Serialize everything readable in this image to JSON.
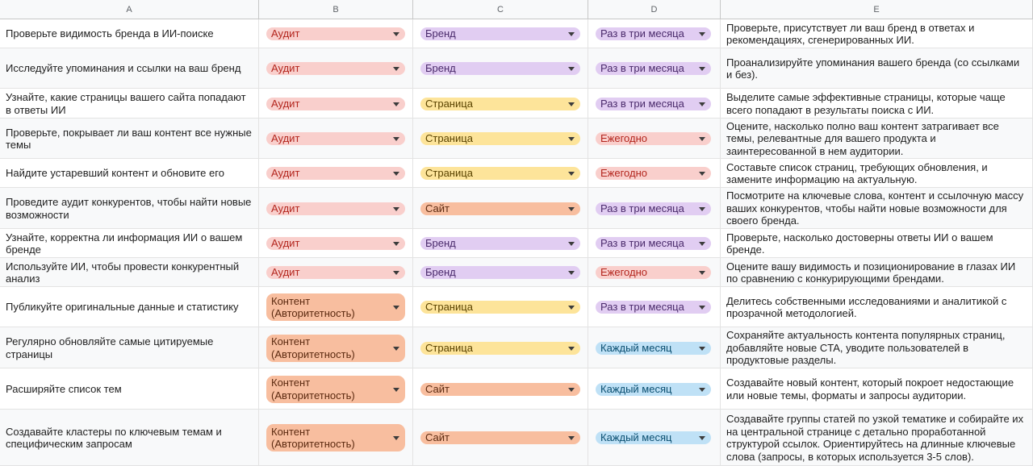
{
  "columns": [
    "A",
    "B",
    "C",
    "D",
    "E"
  ],
  "rows": [
    {
      "task": "Проверьте видимость бренда в ИИ-поиске",
      "category": "Аудит",
      "scope": "Бренд",
      "freq": "Раз в три месяца",
      "desc": "Проверьте, присутствует ли ваш бренд в ответах и рекомендациях, сгенерированных ИИ."
    },
    {
      "task": "Исследуйте упоминания и ссылки на ваш бренд",
      "category": "Аудит",
      "scope": "Бренд",
      "freq": "Раз в три месяца",
      "desc": "Проанализируйте упоминания вашего бренда (со ссылками и без)."
    },
    {
      "task": "Узнайте, какие страницы вашего сайта попадают в ответы ИИ",
      "category": "Аудит",
      "scope": "Страница",
      "freq": "Раз в три месяца",
      "desc": "Выделите самые эффективные страницы, которые чаще всего попадают в результаты поиска с ИИ."
    },
    {
      "task": "Проверьте, покрывает ли ваш контент все нужные темы",
      "category": "Аудит",
      "scope": "Страница",
      "freq": "Ежегодно",
      "desc": "Оцените, насколько полно ваш контент затрагивает все темы, релевантные для вашего продукта и заинтересованной в нем аудитории."
    },
    {
      "task": "Найдите устаревший контент и обновите его",
      "category": "Аудит",
      "scope": "Страница",
      "freq": "Ежегодно",
      "desc": "Составьте список страниц, требующих обновления, и замените информацию на актуальную."
    },
    {
      "task": "Проведите аудит конкурентов, чтобы найти новые возможности",
      "category": "Аудит",
      "scope": "Сайт",
      "freq": "Раз в три месяца",
      "desc": "Посмотрите на ключевые слова, контент и ссылочную массу ваших конкурентов, чтобы найти новые возможности для своего бренда."
    },
    {
      "task": "Узнайте, корректна ли информация ИИ о вашем бренде",
      "category": "Аудит",
      "scope": "Бренд",
      "freq": "Раз в три месяца",
      "desc": "Проверьте, насколько достоверны ответы ИИ о вашем бренде."
    },
    {
      "task": "Используйте ИИ, чтобы провести конкурентный анализ",
      "category": "Аудит",
      "scope": "Бренд",
      "freq": "Ежегодно",
      "desc": "Оцените вашу видимость и позиционирование в глазах ИИ по сравнению с конкурирующими брендами."
    },
    {
      "task": "Публикуйте оригинальные данные и статистику",
      "category": "Контент\n(Авторитетность)",
      "scope": "Страница",
      "freq": "Раз в три месяца",
      "desc": "Делитесь собственными исследованиями и аналитикой с прозрачной методологией."
    },
    {
      "task": "Регулярно обновляйте самые цитируемые страницы",
      "category": "Контент\n(Авторитетность)",
      "scope": "Страница",
      "freq": "Каждый месяц",
      "desc": "Сохраняйте актуальность контента популярных страниц, добавляйте новые CTA, уводите пользователей в продуктовые разделы."
    },
    {
      "task": "Расширяйте список тем",
      "category": "Контент\n(Авторитетность)",
      "scope": "Сайт",
      "freq": "Каждый месяц",
      "desc": "Создавайте новый контент, который покроет недостающие или новые темы, форматы и запросы аудитории."
    },
    {
      "task": "Создавайте кластеры по ключевым темам и специфическим запросам",
      "category": "Контент\n(Авторитетность)",
      "scope": "Сайт",
      "freq": "Каждый месяц",
      "desc": "Создавайте группы статей по узкой тематике и собирайте их на центральной странице с детально проработанной структурой ссылок. Ориентируйтесь на длинные ключевые слова (запросы, в которых используется 3-5 слов)."
    }
  ]
}
